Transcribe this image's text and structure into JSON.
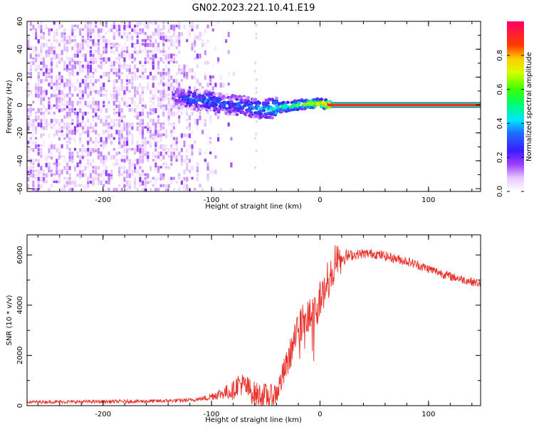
{
  "title": "GN02.2023.221.10.41.E19",
  "chart_data": [
    {
      "type": "heatmap",
      "xlabel": "Height of straight line (km)",
      "ylabel": "Frequency (Hz)",
      "xlim": [
        -270,
        148
      ],
      "ylim": [
        -62,
        60
      ],
      "x_ticks": [
        -200,
        -100,
        0,
        100
      ],
      "x_tick_labels": [
        "-200",
        "-100",
        "0",
        "100"
      ],
      "y_ticks": [
        -60,
        -40,
        -20,
        0,
        20,
        40,
        60
      ],
      "y_tick_labels": [
        "-60",
        "-40",
        "-20",
        "0",
        "20",
        "40",
        "60"
      ],
      "colorbar": {
        "label": "Normalized spectral amplitude",
        "range": [
          0,
          1
        ],
        "ticks": [
          0.0,
          0.2,
          0.4,
          0.6,
          0.8
        ],
        "tick_labels": [
          "0.0",
          "0.2",
          "0.4",
          "0.6",
          "0.8"
        ],
        "colormap": "white-violet-blue-cyan-green-yellow-red-magenta"
      },
      "noise_region": {
        "x_range": [
          -270,
          -105
        ],
        "frequency_range": [
          -62,
          60
        ],
        "amplitude": [
          0.02,
          0.12
        ]
      },
      "signal_ridge": [
        {
          "x": -135,
          "freq": 5,
          "amp": 0.2
        },
        {
          "x": -120,
          "freq": 4,
          "amp": 0.3
        },
        {
          "x": -100,
          "freq": 3,
          "amp": 0.35
        },
        {
          "x": -90,
          "freq": 1,
          "amp": 0.3
        },
        {
          "x": -80,
          "freq": 0,
          "amp": 0.3
        },
        {
          "x": -70,
          "freq": -1,
          "amp": 0.35
        },
        {
          "x": -60,
          "freq": -2,
          "amp": 0.35
        },
        {
          "x": -50,
          "freq": -3,
          "amp": 0.4
        },
        {
          "x": -40,
          "freq": -2,
          "amp": 0.5
        },
        {
          "x": -30,
          "freq": -1,
          "amp": 0.55
        },
        {
          "x": -20,
          "freq": 0,
          "amp": 0.6
        },
        {
          "x": -10,
          "freq": 1,
          "amp": 0.7
        },
        {
          "x": 0,
          "freq": 1,
          "amp": 0.8
        },
        {
          "x": 10,
          "freq": 0,
          "amp": 0.95
        },
        {
          "x": 148,
          "freq": 0,
          "amp": 0.95
        }
      ]
    },
    {
      "type": "line",
      "xlabel": "Height of straight line (km)",
      "ylabel": "SNR (10 * v/v)",
      "xlim": [
        -270,
        148
      ],
      "ylim": [
        0,
        6800
      ],
      "x_ticks": [
        -200,
        -100,
        0,
        100
      ],
      "x_tick_labels": [
        "-200",
        "-100",
        "0",
        "100"
      ],
      "y_ticks": [
        0,
        2000,
        4000,
        6000
      ],
      "y_tick_labels": [
        "0",
        "2000",
        "4000",
        "6000"
      ],
      "line_color": "#e8312b",
      "series": [
        {
          "x": [
            -270,
            -250,
            -200,
            -150,
            -120,
            -105,
            -100,
            -90,
            -80,
            -75,
            -70,
            -60,
            -50,
            -45,
            -40,
            -35,
            -30,
            -25,
            -20,
            -15,
            -10,
            -5,
            0,
            5,
            10,
            15,
            20,
            30,
            40,
            50,
            60,
            80,
            100,
            120,
            148
          ],
          "y": [
            150,
            150,
            160,
            180,
            220,
            300,
            380,
            500,
            600,
            900,
            800,
            450,
            400,
            350,
            500,
            1100,
            1700,
            2400,
            3000,
            3400,
            3600,
            3800,
            4200,
            4600,
            5000,
            5600,
            5900,
            6000,
            6050,
            6050,
            5950,
            5750,
            5450,
            5150,
            4850
          ]
        }
      ],
      "noise_amplitude": [
        {
          "x": -270,
          "amp": 60
        },
        {
          "x": -110,
          "amp": 80
        },
        {
          "x": -90,
          "amp": 250
        },
        {
          "x": -70,
          "amp": 500
        },
        {
          "x": -40,
          "amp": 500
        },
        {
          "x": -20,
          "amp": 700
        },
        {
          "x": 0,
          "amp": 800
        },
        {
          "x": 15,
          "amp": 400
        },
        {
          "x": 30,
          "amp": 200
        },
        {
          "x": 148,
          "amp": 170
        }
      ]
    }
  ]
}
